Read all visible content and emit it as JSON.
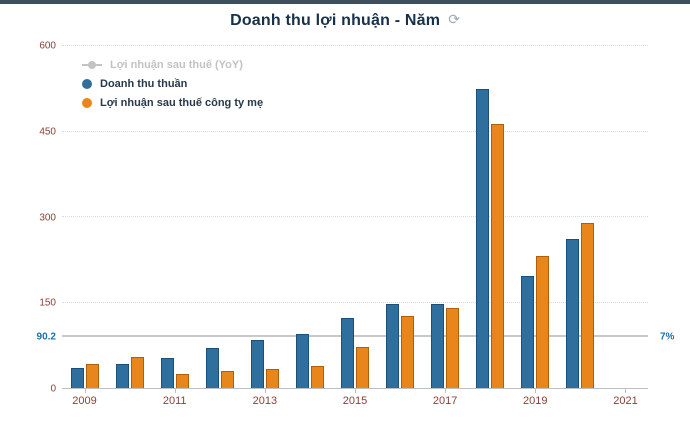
{
  "title": "Doanh thu lợi nhuận - Năm",
  "refresh_icon": "⟳",
  "colors": {
    "revenue_fill": "#2e6f9e",
    "revenue_border": "#1b4f77",
    "profit_fill": "#e8861c",
    "profit_border": "#b05f09",
    "disabled_gray": "#c3c3c3",
    "axis_label": "#8b4038",
    "accent_blue": "#1d6fa5"
  },
  "legend": [
    {
      "label": "Lợi nhuận sau thuế (YoY)",
      "type": "line",
      "color": "#c3c3c3",
      "disabled": true
    },
    {
      "label": "Doanh thu thuần",
      "type": "circle",
      "color": "#2e6f9e",
      "disabled": false
    },
    {
      "label": "Lợi nhuận sau thuế công ty mẹ",
      "type": "circle",
      "color": "#e8861c",
      "disabled": false
    }
  ],
  "chart_data": {
    "type": "bar",
    "title": "Doanh thu lợi nhuận - Năm",
    "categories": [
      2009,
      2010,
      2011,
      2012,
      2013,
      2014,
      2015,
      2016,
      2017,
      2018,
      2019,
      2020
    ],
    "series": [
      {
        "name": "Doanh thu thuần",
        "key": "doanh-thu-thuan",
        "color": "#2e6f9e",
        "border_color": "#1b4f77",
        "values": [
          35,
          42,
          52,
          70,
          85,
          95,
          122,
          148,
          147,
          525,
          196,
          262
        ]
      },
      {
        "name": "Lợi nhuận sau thuế công ty mẹ",
        "key": "loi-nhuan-sau-thue",
        "color": "#e8861c",
        "border_color": "#b05f09",
        "values": [
          42,
          55,
          25,
          30,
          33,
          38,
          72,
          127,
          141,
          463,
          232,
          290
        ]
      }
    ],
    "disabled_series": "Lợi nhuận sau thuế (YoY)",
    "ylim": [
      0,
      600
    ],
    "yticks": [
      0,
      150,
      300,
      450,
      600
    ],
    "xticks": [
      2009,
      2011,
      2013,
      2015,
      2017,
      2019,
      2021
    ],
    "x_slots": 13,
    "grid": "horizontal-dotted",
    "legend_position": "top-left-inside",
    "reference_line": {
      "value": 90.2,
      "left_label": "90.2",
      "right_label": "7%"
    }
  }
}
